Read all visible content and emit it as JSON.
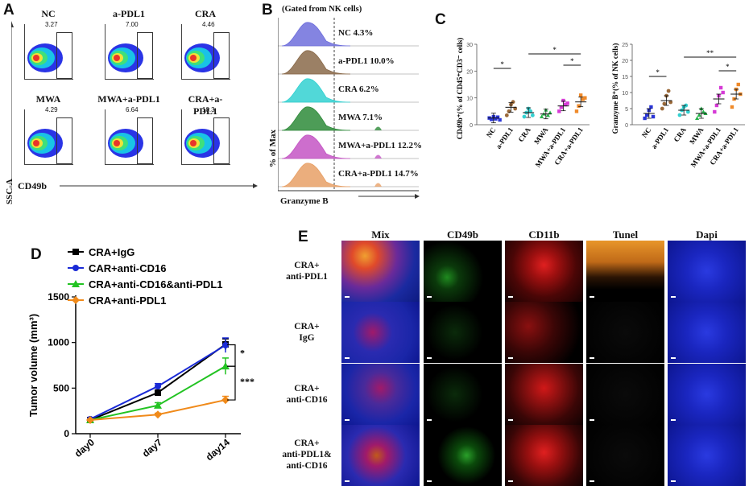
{
  "panels": {
    "A": "A",
    "B": "B",
    "C": "C",
    "D": "D",
    "E": "E"
  },
  "panel_a": {
    "plots": [
      {
        "title": "NC",
        "value": "3.27"
      },
      {
        "title": "a-PDL1",
        "value": "7.00"
      },
      {
        "title": "CRA",
        "value": "4.46"
      },
      {
        "title": "MWA",
        "value": "4.29"
      },
      {
        "title": "MWA+a-PDL1",
        "value": "6.64"
      },
      {
        "title": "CRA+a-PDL1",
        "value": "10.3"
      }
    ],
    "y_label": "SSC-A",
    "x_label": "CD49b"
  },
  "panel_b": {
    "header": "(Gated from NK cells)",
    "y_label": "% of Max",
    "x_label": "Granzyme B",
    "tracks": [
      {
        "label": "NC 4.3%",
        "color": "#6f6fdc"
      },
      {
        "label": "a-PDL1 10.0%",
        "color": "#8a6a4a"
      },
      {
        "label": "CRA 6.2%",
        "color": "#33d1d1"
      },
      {
        "label": "MWA 7.1%",
        "color": "#2e8b3a"
      },
      {
        "label": "MWA+a-PDL1 12.2%",
        "color": "#c455c4"
      },
      {
        "label": "CRA+a-PDL1 14.7%",
        "color": "#e8a066"
      }
    ]
  },
  "panel_c": {
    "chart1": {
      "y_label": "CD49b⁺(% of CD45⁺CD3⁻ cells)",
      "ticks": [
        "0",
        "10",
        "20",
        "30"
      ]
    },
    "chart2": {
      "y_label": "Granzyme B⁺(% of NK cells)",
      "ticks": [
        "0",
        "5",
        "10",
        "15",
        "20",
        "25"
      ]
    },
    "groups": [
      "NC",
      "a-PDL1",
      "CRA",
      "MWA",
      "MWA+a-PDL1",
      "CRA+a-PDL1"
    ],
    "colors": [
      "#2a35d6",
      "#9b6a3a",
      "#33d1d1",
      "#26b24a",
      "#d63ad6",
      "#ef8a2a"
    ],
    "sig": [
      "*",
      "*",
      "*",
      "*",
      "*",
      "**"
    ]
  },
  "panel_d": {
    "y_label": "Tumor volume (mm³)",
    "sig": [
      "*",
      "***"
    ]
  },
  "panel_e": {
    "columns": [
      "Mix",
      "CD49b",
      "CD11b",
      "Tunel",
      "Dapi"
    ],
    "rows": [
      {
        "line1": "CRA+",
        "line2": "anti-PDL1",
        "line3": ""
      },
      {
        "line1": "CRA+",
        "line2": "IgG",
        "line3": ""
      },
      {
        "line1": "CRA+",
        "line2": "anti-CD16",
        "line3": ""
      },
      {
        "line1": "CRA+",
        "line2": "anti-PDL1&",
        "line3": "anti-CD16"
      }
    ]
  },
  "chart_data": [
    {
      "type": "scatter",
      "ylabel": "CD49b⁺(% of CD45⁺CD3⁻ cells)",
      "ylim": [
        0,
        30
      ],
      "categories": [
        "NC",
        "a-PDL1",
        "CRA",
        "MWA",
        "MWA+a-PDL1",
        "CRA+a-PDL1"
      ],
      "means": [
        2.5,
        6.5,
        4.5,
        4.0,
        7.0,
        8.5
      ],
      "points": [
        [
          2.5,
          2.0,
          3.0,
          2.2,
          2.8,
          1.8
        ],
        [
          3.5,
          5.0,
          7.5,
          8.5,
          6.0
        ],
        [
          3.0,
          4.5,
          6.0,
          5.0,
          3.5
        ],
        [
          3.0,
          4.0,
          5.5,
          3.5,
          4.5
        ],
        [
          5.0,
          6.5,
          9.0,
          7.5,
          8.0
        ],
        [
          5.0,
          7.0,
          11.0,
          9.5,
          10.0
        ]
      ]
    },
    {
      "type": "scatter",
      "ylabel": "Granzyme B⁺(% of NK cells)",
      "ylim": [
        0,
        25
      ],
      "categories": [
        "NC",
        "a-PDL1",
        "CRA",
        "MWA",
        "MWA+a-PDL1",
        "CRA+a-PDL1"
      ],
      "means": [
        3.5,
        7.5,
        4.5,
        3.5,
        8.0,
        9.5
      ],
      "points": [
        [
          2.0,
          3.0,
          4.5,
          5.5,
          2.5
        ],
        [
          5.0,
          6.5,
          9.0,
          10.5,
          7.0
        ],
        [
          3.0,
          4.5,
          5.5,
          6.0,
          4.0
        ],
        [
          2.0,
          3.0,
          5.0,
          4.0,
          3.5
        ],
        [
          4.0,
          6.0,
          9.0,
          11.5,
          10.0
        ],
        [
          5.5,
          8.0,
          11.0,
          12.5,
          9.5
        ]
      ]
    },
    {
      "type": "line",
      "ylabel": "Tumor volume (mm³)",
      "ylim": [
        0,
        1500
      ],
      "yticks": [
        0,
        500,
        1000,
        1500
      ],
      "categories": [
        "day0",
        "day7",
        "day14"
      ],
      "series": [
        {
          "name": "CRA+IgG",
          "color": "#000000",
          "marker": "square",
          "values": [
            150,
            450,
            980
          ],
          "err": [
            10,
            30,
            60
          ]
        },
        {
          "name": "CAR+anti-CD16",
          "color": "#1a2ad6",
          "marker": "circle",
          "values": [
            160,
            520,
            970
          ],
          "err": [
            10,
            30,
            80
          ]
        },
        {
          "name": "CRA+anti-CD16&anti-PDL1",
          "color": "#22c322",
          "marker": "triangle",
          "values": [
            150,
            310,
            740
          ],
          "err": [
            10,
            30,
            90
          ]
        },
        {
          "name": "CRA+anti-PDL1",
          "color": "#f08a1a",
          "marker": "diamond",
          "values": [
            150,
            210,
            370
          ],
          "err": [
            10,
            15,
            40
          ]
        }
      ]
    }
  ]
}
